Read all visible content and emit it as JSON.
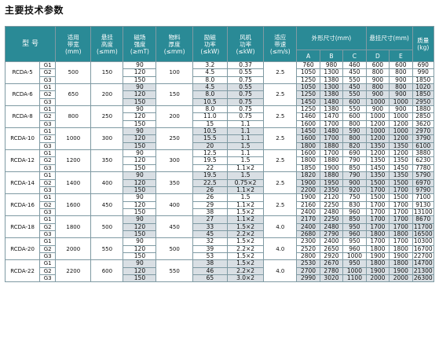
{
  "page_title": "主要技术参数",
  "headers": {
    "model": "型 号",
    "belt_width": [
      "适用",
      "带宽",
      "(mm)"
    ],
    "hang_height": [
      "悬挂",
      "高度",
      "(≤mm)"
    ],
    "field_strength": [
      "磁场",
      "强度",
      "(≥mT)"
    ],
    "material_thickness": [
      "物料",
      "厚度",
      "(≤mm)"
    ],
    "excite_power": [
      "励磁",
      "功率",
      "(≤kW)"
    ],
    "fan_power": [
      "风机",
      "功率",
      "(≤kW)"
    ],
    "belt_speed": [
      "适应",
      "带速",
      "(≤m/s)"
    ],
    "dims": "外形尺寸(mm)",
    "hang_dims": "悬挂尺寸(mm)",
    "weight": [
      "质量",
      "(kg)"
    ],
    "A": "A",
    "B": "B",
    "C": "C",
    "D": "D",
    "E": "E"
  },
  "models": [
    {
      "name": "RCDA-5",
      "width": "500",
      "height": "150",
      "thick": "100",
      "speed": "2.5",
      "rows": [
        {
          "g": "G1",
          "mt": "90",
          "kw": "3.2",
          "fan": "0.37",
          "A": "760",
          "B": "980",
          "C": "460",
          "D": "600",
          "E": "600",
          "kg": "690"
        },
        {
          "g": "G2",
          "mt": "120",
          "kw": "4.5",
          "fan": "0.55",
          "A": "1050",
          "B": "1300",
          "C": "450",
          "D": "800",
          "E": "800",
          "kg": "990"
        },
        {
          "g": "G3",
          "mt": "150",
          "kw": "8.0",
          "fan": "0.75",
          "A": "1250",
          "B": "1380",
          "C": "550",
          "D": "900",
          "E": "900",
          "kg": "1850"
        }
      ]
    },
    {
      "name": "RCDA-6",
      "width": "650",
      "height": "200",
      "thick": "150",
      "speed": "2.5",
      "rows": [
        {
          "g": "G1",
          "mt": "90",
          "kw": "4.5",
          "fan": "0.55",
          "A": "1050",
          "B": "1300",
          "C": "450",
          "D": "800",
          "E": "800",
          "kg": "1020"
        },
        {
          "g": "G2",
          "mt": "120",
          "kw": "8.0",
          "fan": "0.75",
          "A": "1250",
          "B": "1380",
          "C": "550",
          "D": "900",
          "E": "900",
          "kg": "1850"
        },
        {
          "g": "G3",
          "mt": "150",
          "kw": "10.5",
          "fan": "0.75",
          "A": "1450",
          "B": "1480",
          "C": "600",
          "D": "1000",
          "E": "1000",
          "kg": "2950"
        }
      ]
    },
    {
      "name": "RCDA-8",
      "width": "800",
      "height": "250",
      "thick": "200",
      "speed": "2.5",
      "rows": [
        {
          "g": "G1",
          "mt": "90",
          "kw": "8.0",
          "fan": "0.75",
          "A": "1250",
          "B": "1380",
          "C": "550",
          "D": "900",
          "E": "900",
          "kg": "1880"
        },
        {
          "g": "G2",
          "mt": "120",
          "kw": "11.0",
          "fan": "0.75",
          "A": "1460",
          "B": "1470",
          "C": "600",
          "D": "1000",
          "E": "1000",
          "kg": "2850"
        },
        {
          "g": "G3",
          "mt": "150",
          "kw": "15",
          "fan": "1.1",
          "A": "1600",
          "B": "1700",
          "C": "800",
          "D": "1200",
          "E": "1200",
          "kg": "3620"
        }
      ]
    },
    {
      "name": "RCDA-10",
      "width": "1000",
      "height": "300",
      "thick": "250",
      "speed": "2.5",
      "rows": [
        {
          "g": "G1",
          "mt": "90",
          "kw": "10.5",
          "fan": "1.1",
          "A": "1450",
          "B": "1480",
          "C": "590",
          "D": "1000",
          "E": "1000",
          "kg": "2970"
        },
        {
          "g": "G2",
          "mt": "120",
          "kw": "15.5",
          "fan": "1.1",
          "A": "1600",
          "B": "1700",
          "C": "800",
          "D": "1200",
          "E": "1200",
          "kg": "3790"
        },
        {
          "g": "G3",
          "mt": "150",
          "kw": "20",
          "fan": "1.5",
          "A": "1800",
          "B": "1880",
          "C": "820",
          "D": "1350",
          "E": "1350",
          "kg": "6100"
        }
      ]
    },
    {
      "name": "RCDA-12",
      "width": "1200",
      "height": "350",
      "thick": "300",
      "speed": "2.5",
      "rows": [
        {
          "g": "G1",
          "mt": "90",
          "kw": "12.5",
          "fan": "1.1",
          "A": "1600",
          "B": "1700",
          "C": "690",
          "D": "1200",
          "E": "1200",
          "kg": "3880"
        },
        {
          "g": "G2",
          "mt": "120",
          "kw": "19.5",
          "fan": "1.5",
          "A": "1800",
          "B": "1880",
          "C": "790",
          "D": "1350",
          "E": "1350",
          "kg": "6230"
        },
        {
          "g": "G3",
          "mt": "150",
          "kw": "22",
          "fan": "1.1×2",
          "A": "1850",
          "B": "1900",
          "C": "850",
          "D": "1450",
          "E": "1450",
          "kg": "7780"
        }
      ]
    },
    {
      "name": "RCDA-14",
      "width": "1400",
      "height": "400",
      "thick": "350",
      "speed": "2.5",
      "rows": [
        {
          "g": "G1",
          "mt": "90",
          "kw": "19.5",
          "fan": "1.5",
          "A": "1820",
          "B": "1880",
          "C": "790",
          "D": "1350",
          "E": "1350",
          "kg": "5790"
        },
        {
          "g": "G2",
          "mt": "120",
          "kw": "22.5",
          "fan": "0.75×2",
          "A": "1900",
          "B": "1950",
          "C": "900",
          "D": "1500",
          "E": "1500",
          "kg": "6970"
        },
        {
          "g": "G3",
          "mt": "150",
          "kw": "26",
          "fan": "1.1×2",
          "A": "2200",
          "B": "2350",
          "C": "920",
          "D": "1700",
          "E": "1700",
          "kg": "9790"
        }
      ]
    },
    {
      "name": "RCDA-16",
      "width": "1600",
      "height": "450",
      "thick": "400",
      "speed": "2.5",
      "rows": [
        {
          "g": "G1",
          "mt": "90",
          "kw": "26",
          "fan": "1.5",
          "A": "1900",
          "B": "2120",
          "C": "750",
          "D": "1500",
          "E": "1500",
          "kg": "7100"
        },
        {
          "g": "G2",
          "mt": "120",
          "kw": "29",
          "fan": "1.1×2",
          "A": "2160",
          "B": "2250",
          "C": "830",
          "D": "1700",
          "E": "1700",
          "kg": "9130"
        },
        {
          "g": "G3",
          "mt": "150",
          "kw": "38",
          "fan": "1.5×2",
          "A": "2400",
          "B": "2480",
          "C": "960",
          "D": "1700",
          "E": "1700",
          "kg": "13100"
        }
      ]
    },
    {
      "name": "RCDA-18",
      "width": "1800",
      "height": "500",
      "thick": "450",
      "speed": "4.0",
      "rows": [
        {
          "g": "G1",
          "mt": "90",
          "kw": "27",
          "fan": "1.1×2",
          "A": "2170",
          "B": "2250",
          "C": "850",
          "D": "1700",
          "E": "1700",
          "kg": "8670"
        },
        {
          "g": "G2",
          "mt": "120",
          "kw": "33",
          "fan": "1.5×2",
          "A": "2400",
          "B": "2480",
          "C": "950",
          "D": "1700",
          "E": "1700",
          "kg": "11700"
        },
        {
          "g": "G3",
          "mt": "150",
          "kw": "45",
          "fan": "2.2×2",
          "A": "2680",
          "B": "2790",
          "C": "960",
          "D": "1800",
          "E": "1800",
          "kg": "16500"
        }
      ]
    },
    {
      "name": "RCDA-20",
      "width": "2000",
      "height": "550",
      "thick": "500",
      "speed": "4.0",
      "rows": [
        {
          "g": "G1",
          "mt": "90",
          "kw": "32",
          "fan": "1.5×2",
          "A": "2300",
          "B": "2400",
          "C": "950",
          "D": "1700",
          "E": "1700",
          "kg": "10300"
        },
        {
          "g": "G2",
          "mt": "120",
          "kw": "39",
          "fan": "2.2×2",
          "A": "2520",
          "B": "2650",
          "C": "960",
          "D": "1800",
          "E": "1800",
          "kg": "16700"
        },
        {
          "g": "G3",
          "mt": "150",
          "kw": "53",
          "fan": "1.5×2",
          "A": "2800",
          "B": "2920",
          "C": "1000",
          "D": "1900",
          "E": "1900",
          "kg": "22700"
        }
      ]
    },
    {
      "name": "RCDA-22",
      "width": "2200",
      "height": "600",
      "thick": "550",
      "speed": "4.0",
      "rows": [
        {
          "g": "G1",
          "mt": "90",
          "kw": "38",
          "fan": "1.5×2",
          "A": "2530",
          "B": "2670",
          "C": "950",
          "D": "1800",
          "E": "1800",
          "kg": "14700"
        },
        {
          "g": "G2",
          "mt": "120",
          "kw": "46",
          "fan": "2.2×2",
          "A": "2700",
          "B": "2780",
          "C": "1000",
          "D": "1900",
          "E": "1900",
          "kg": "21300"
        },
        {
          "g": "G3",
          "mt": "150",
          "kw": "65",
          "fan": "3.0×2",
          "A": "2990",
          "B": "3020",
          "C": "1100",
          "D": "2000",
          "E": "2000",
          "kg": "26300"
        }
      ]
    }
  ]
}
